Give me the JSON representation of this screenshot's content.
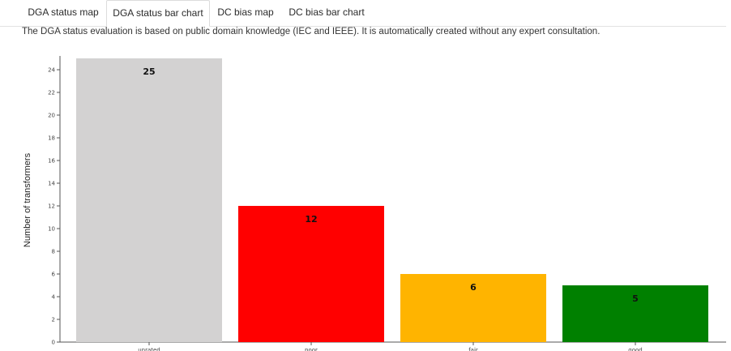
{
  "tabs": [
    {
      "label": "DGA status map",
      "active": false
    },
    {
      "label": "DGA status bar chart",
      "active": true
    },
    {
      "label": "DC bias map",
      "active": false
    },
    {
      "label": "DC bias bar chart",
      "active": false
    }
  ],
  "description": "The DGA status evaluation is based on public domain knowledge (IEC and IEEE). It is automatically created without any expert consultation.",
  "chart_data": {
    "type": "bar",
    "categories": [
      "unrated",
      "poor",
      "fair",
      "good"
    ],
    "values": [
      25,
      12,
      6,
      5
    ],
    "colors": [
      "#d3d2d2",
      "#ff0000",
      "#ffb400",
      "#008000"
    ],
    "xlabel": "",
    "ylabel": "Number of transformers",
    "ylim": [
      0,
      25
    ],
    "yticks": [
      0,
      2,
      4,
      6,
      8,
      10,
      12,
      14,
      16,
      18,
      20,
      22,
      24
    ],
    "grid": false,
    "data_labels": true
  }
}
